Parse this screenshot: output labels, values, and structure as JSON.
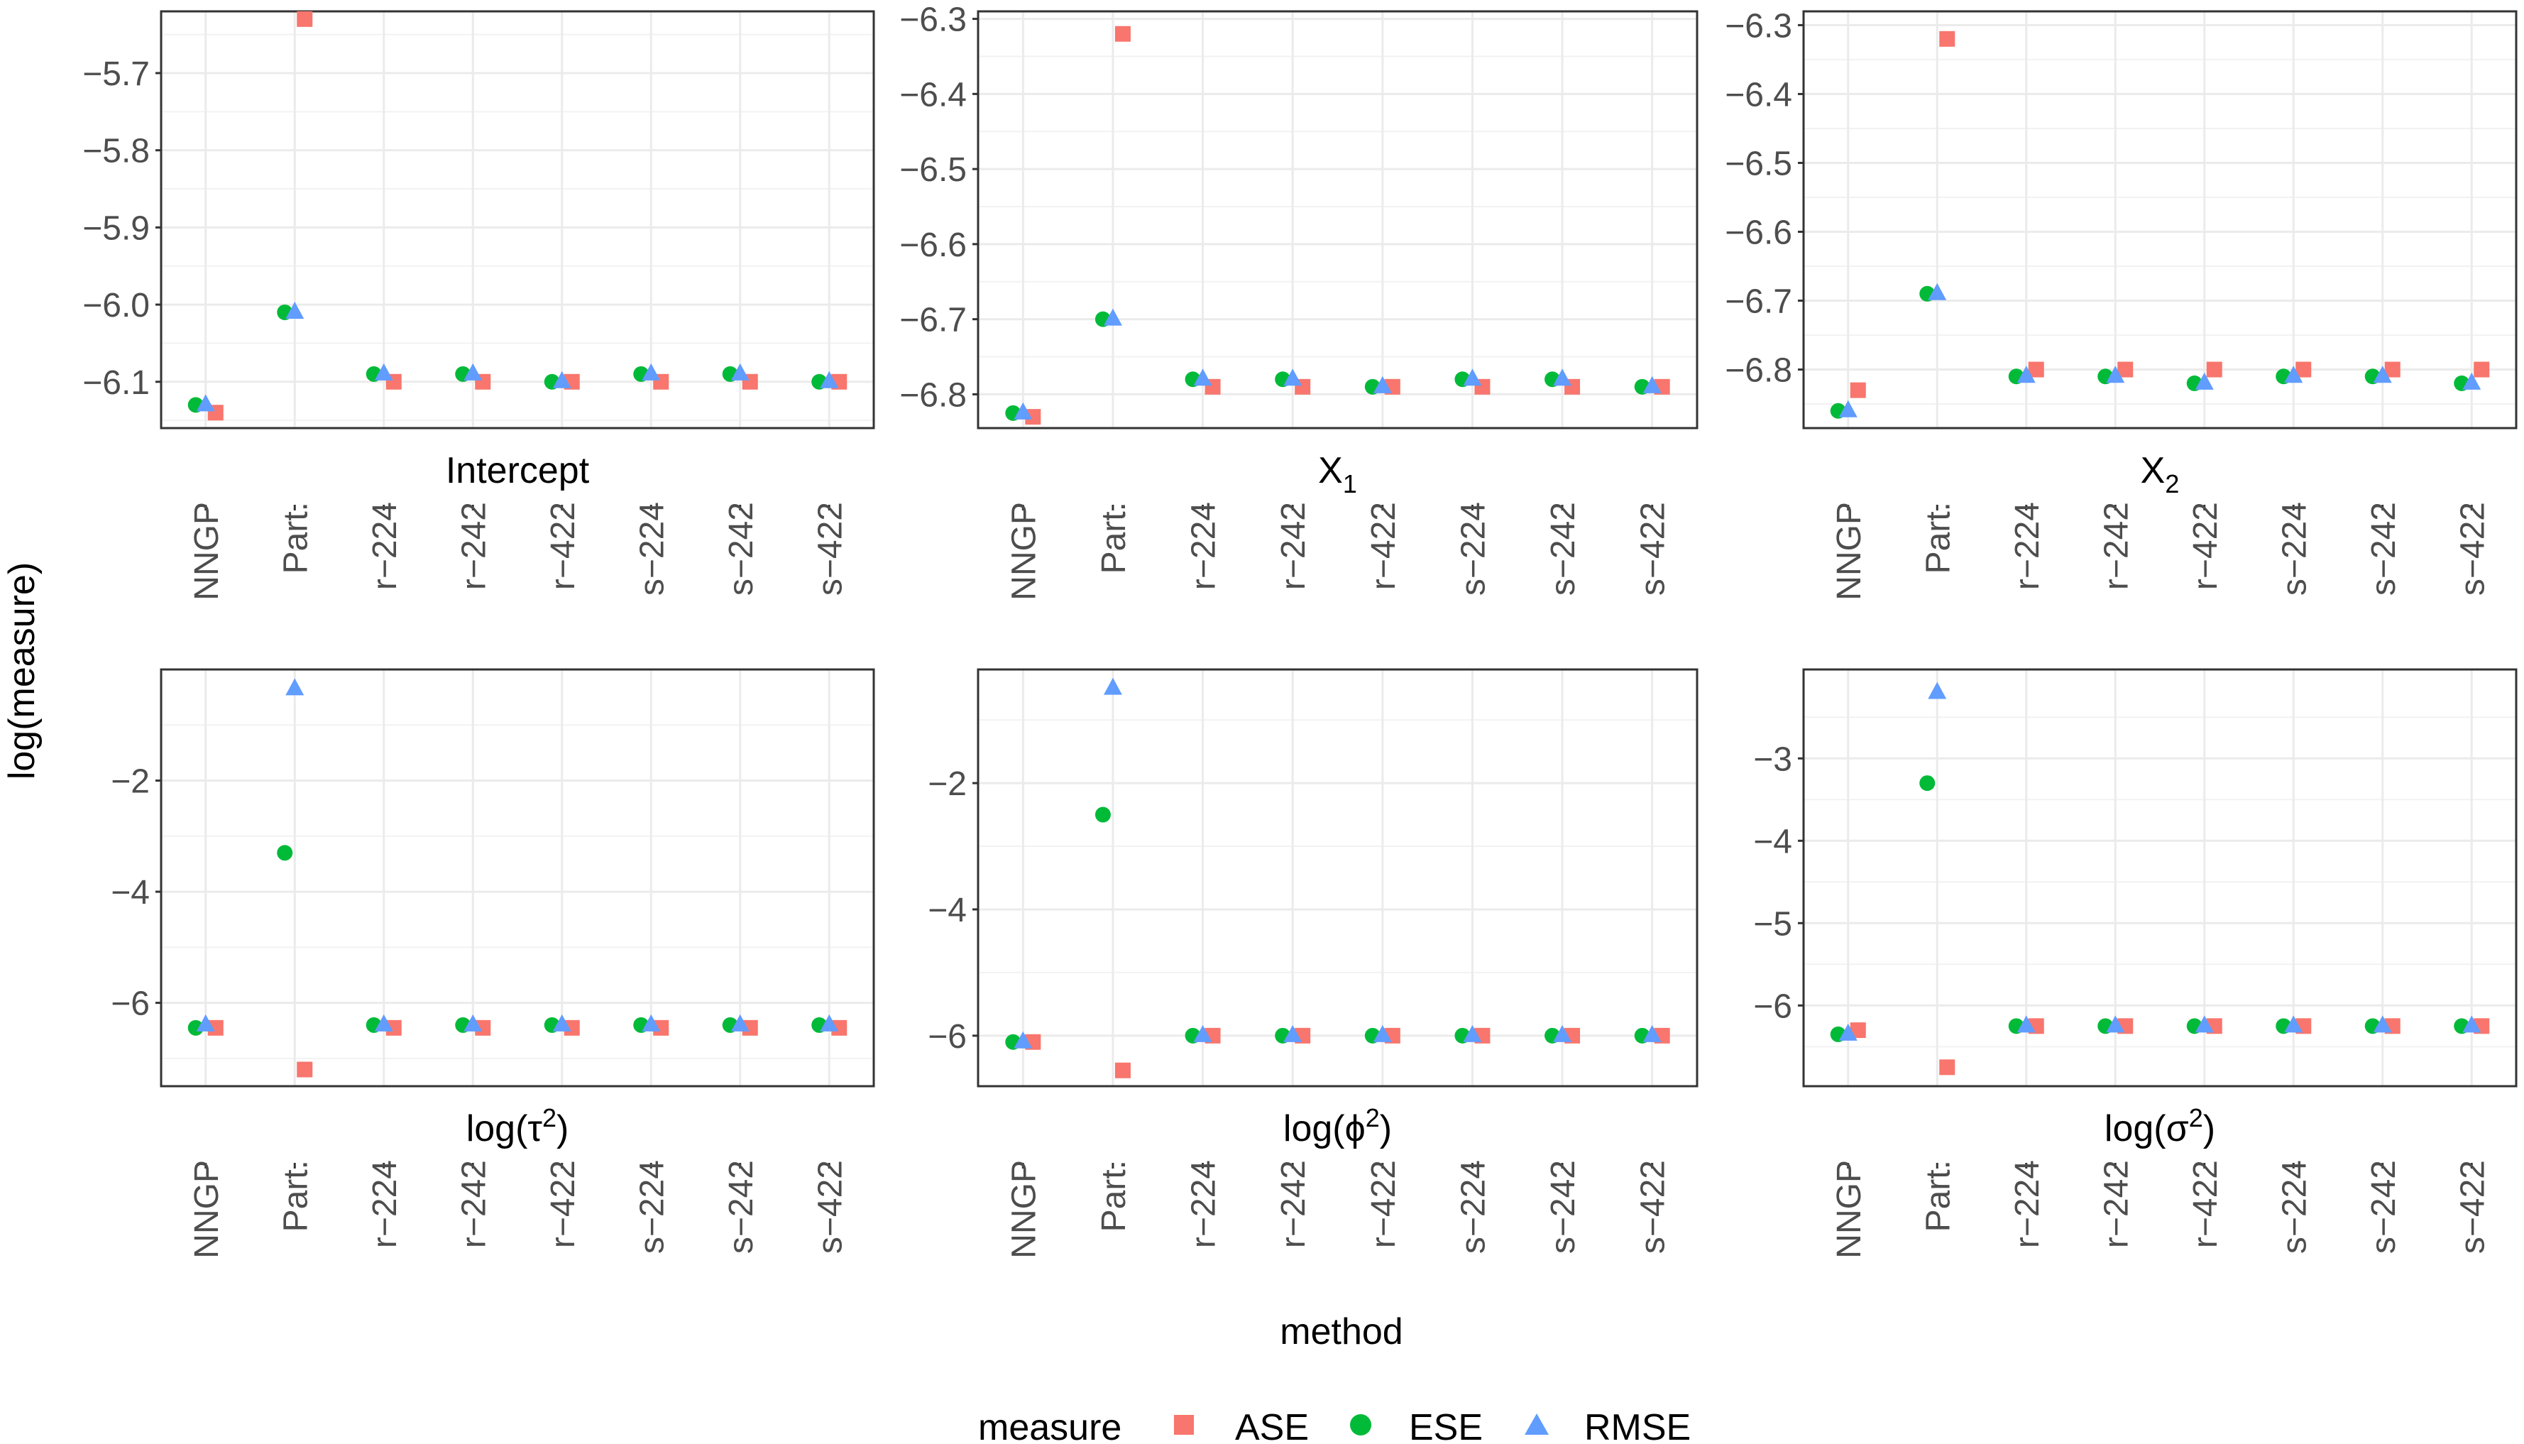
{
  "axis_labels": {
    "y": "log(measure)",
    "x": "method"
  },
  "legend": {
    "title": "measure",
    "items": [
      {
        "label": "ASE",
        "color": "#F8766D",
        "shape": "square"
      },
      {
        "label": "ESE",
        "color": "#00BA38",
        "shape": "circle"
      },
      {
        "label": "RMSE",
        "color": "#619CFF",
        "shape": "triangle"
      }
    ]
  },
  "chart_data": [
    {
      "type": "scatter",
      "panel": "Intercept",
      "strip": "Intercept",
      "categories": [
        "NNGP",
        "Part.",
        "r−224",
        "r−242",
        "r−422",
        "s−224",
        "s−242",
        "s−422"
      ],
      "ylim": [
        -6.16,
        -5.62
      ],
      "yticks": [
        -6.1,
        -6.0,
        -5.9,
        -5.8,
        -5.7
      ],
      "ytick_labels": [
        "−6.1",
        "−6.0",
        "−5.9",
        "−5.8",
        "−5.7"
      ],
      "series": [
        {
          "name": "ASE",
          "values": [
            -6.14,
            -5.63,
            -6.1,
            -6.1,
            -6.1,
            -6.1,
            -6.1,
            -6.1
          ]
        },
        {
          "name": "ESE",
          "values": [
            -6.13,
            -6.01,
            -6.09,
            -6.09,
            -6.1,
            -6.09,
            -6.09,
            -6.1
          ]
        },
        {
          "name": "RMSE",
          "values": [
            -6.13,
            -6.01,
            -6.09,
            -6.09,
            -6.1,
            -6.09,
            -6.09,
            -6.1
          ]
        }
      ]
    },
    {
      "type": "scatter",
      "panel": "X1",
      "strip": "X",
      "strip_sub": "1",
      "categories": [
        "NNGP",
        "Part.",
        "r−224",
        "r−242",
        "r−422",
        "s−224",
        "s−242",
        "s−422"
      ],
      "ylim": [
        -6.845,
        -6.29
      ],
      "yticks": [
        -6.8,
        -6.7,
        -6.6,
        -6.5,
        -6.4,
        -6.3
      ],
      "ytick_labels": [
        "−6.8",
        "−6.7",
        "−6.6",
        "−6.5",
        "−6.4",
        "−6.3"
      ],
      "series": [
        {
          "name": "ASE",
          "values": [
            -6.83,
            -6.32,
            -6.79,
            -6.79,
            -6.79,
            -6.79,
            -6.79,
            -6.79
          ]
        },
        {
          "name": "ESE",
          "values": [
            -6.825,
            -6.7,
            -6.78,
            -6.78,
            -6.79,
            -6.78,
            -6.78,
            -6.79
          ]
        },
        {
          "name": "RMSE",
          "values": [
            -6.825,
            -6.7,
            -6.78,
            -6.78,
            -6.79,
            -6.78,
            -6.78,
            -6.79
          ]
        }
      ]
    },
    {
      "type": "scatter",
      "panel": "X2",
      "strip": "X",
      "strip_sub": "2",
      "categories": [
        "NNGP",
        "Part.",
        "r−224",
        "r−242",
        "r−422",
        "s−224",
        "s−242",
        "s−422"
      ],
      "ylim": [
        -6.885,
        -6.28
      ],
      "yticks": [
        -6.8,
        -6.7,
        -6.6,
        -6.5,
        -6.4,
        -6.3
      ],
      "ytick_labels": [
        "−6.8",
        "−6.7",
        "−6.6",
        "−6.5",
        "−6.4",
        "−6.3"
      ],
      "series": [
        {
          "name": "ASE",
          "values": [
            -6.83,
            -6.32,
            -6.8,
            -6.8,
            -6.8,
            -6.8,
            -6.8,
            -6.8
          ]
        },
        {
          "name": "ESE",
          "values": [
            -6.86,
            -6.69,
            -6.81,
            -6.81,
            -6.82,
            -6.81,
            -6.81,
            -6.82
          ]
        },
        {
          "name": "RMSE",
          "values": [
            -6.86,
            -6.69,
            -6.81,
            -6.81,
            -6.82,
            -6.81,
            -6.81,
            -6.82
          ]
        }
      ]
    },
    {
      "type": "scatter",
      "panel": "log(tau^2)",
      "strip": "log(τ",
      "strip_sup": "2",
      "strip_end": ")",
      "categories": [
        "NNGP",
        "Part.",
        "r−224",
        "r−242",
        "r−422",
        "s−224",
        "s−242",
        "s−422"
      ],
      "ylim": [
        -7.5,
        0.0
      ],
      "yticks": [
        -6,
        -4,
        -2
      ],
      "ytick_labels": [
        "−6",
        "−4",
        "−2"
      ],
      "series": [
        {
          "name": "ASE",
          "values": [
            -6.45,
            -7.2,
            -6.45,
            -6.45,
            -6.45,
            -6.45,
            -6.45,
            -6.45
          ]
        },
        {
          "name": "ESE",
          "values": [
            -6.45,
            -3.3,
            -6.4,
            -6.4,
            -6.4,
            -6.4,
            -6.4,
            -6.4
          ]
        },
        {
          "name": "RMSE",
          "values": [
            -6.4,
            -0.35,
            -6.4,
            -6.4,
            -6.4,
            -6.4,
            -6.4,
            -6.4
          ]
        }
      ]
    },
    {
      "type": "scatter",
      "panel": "log(phi^2)",
      "strip": "log(ϕ",
      "strip_sup": "2",
      "strip_end": ")",
      "categories": [
        "NNGP",
        "Part.",
        "r−224",
        "r−242",
        "r−422",
        "s−224",
        "s−242",
        "s−422"
      ],
      "ylim": [
        -6.8,
        -0.2
      ],
      "yticks": [
        -6,
        -4,
        -2
      ],
      "ytick_labels": [
        "−6",
        "−4",
        "−2"
      ],
      "series": [
        {
          "name": "ASE",
          "values": [
            -6.1,
            -6.55,
            -6.0,
            -6.0,
            -6.0,
            -6.0,
            -6.0,
            -6.0
          ]
        },
        {
          "name": "ESE",
          "values": [
            -6.1,
            -2.5,
            -6.0,
            -6.0,
            -6.0,
            -6.0,
            -6.0,
            -6.0
          ]
        },
        {
          "name": "RMSE",
          "values": [
            -6.1,
            -0.5,
            -6.0,
            -6.0,
            -6.0,
            -6.0,
            -6.0,
            -6.0
          ]
        }
      ]
    },
    {
      "type": "scatter",
      "panel": "log(sigma^2)",
      "strip": "log(σ",
      "strip_sup": "2",
      "strip_end": ")",
      "categories": [
        "NNGP",
        "Part.",
        "r−224",
        "r−242",
        "r−422",
        "s−224",
        "s−242",
        "s−422"
      ],
      "ylim": [
        -6.98,
        -1.92
      ],
      "yticks": [
        -6,
        -5,
        -4,
        -3
      ],
      "ytick_labels": [
        "−6",
        "−5",
        "−4",
        "−3"
      ],
      "series": [
        {
          "name": "ASE",
          "values": [
            -6.3,
            -6.75,
            -6.25,
            -6.25,
            -6.25,
            -6.25,
            -6.25,
            -6.25
          ]
        },
        {
          "name": "ESE",
          "values": [
            -6.35,
            -3.3,
            -6.25,
            -6.25,
            -6.25,
            -6.25,
            -6.25,
            -6.25
          ]
        },
        {
          "name": "RMSE",
          "values": [
            -6.35,
            -2.2,
            -6.25,
            -6.25,
            -6.25,
            -6.25,
            -6.25,
            -6.25
          ]
        }
      ]
    }
  ]
}
